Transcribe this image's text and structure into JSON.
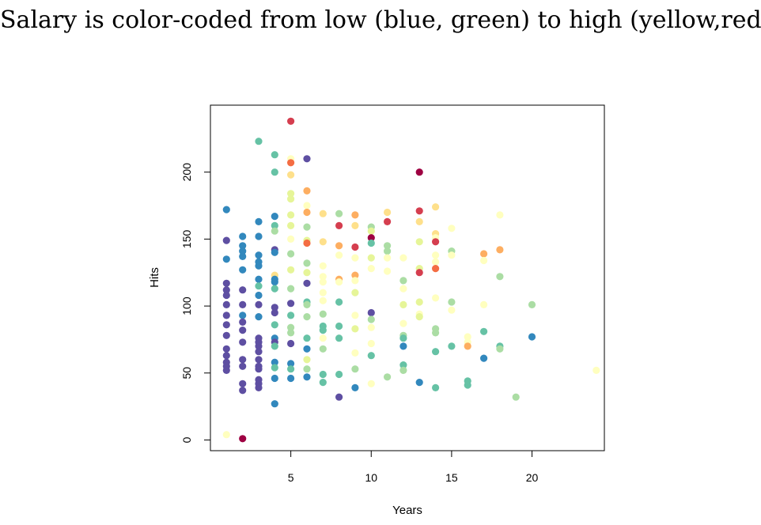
{
  "title": "Salary is color-coded from low (blue, green) to high (yellow,red)",
  "palette": {
    "r1": "#9e0142",
    "r2": "#d53e4f",
    "r3": "#f46d43",
    "r4": "#fdae61",
    "r5": "#fee08b",
    "r6": "#ffffbf",
    "r7": "#e6f598",
    "r8": "#abdda4",
    "r9": "#66c2a5",
    "r10": "#3288bd",
    "r11": "#5e4fa2"
  },
  "chart_data": {
    "type": "scatter",
    "xlabel": "Years",
    "ylabel": "Hits",
    "xlim": [
      0,
      24.5
    ],
    "ylim": [
      -8,
      250
    ],
    "xticks": [
      5,
      10,
      15,
      20
    ],
    "yticks": [
      0,
      50,
      100,
      150,
      200
    ],
    "grid": false,
    "points": [
      [
        1,
        172,
        "r10"
      ],
      [
        1,
        149,
        "r11"
      ],
      [
        1,
        135,
        "r10"
      ],
      [
        1,
        117,
        "r11"
      ],
      [
        1,
        112,
        "r11"
      ],
      [
        1,
        108,
        "r11"
      ],
      [
        1,
        101,
        "r11"
      ],
      [
        1,
        93,
        "r11"
      ],
      [
        1,
        86,
        "r11"
      ],
      [
        1,
        78,
        "r11"
      ],
      [
        1,
        68,
        "r11"
      ],
      [
        1,
        63,
        "r11"
      ],
      [
        1,
        58,
        "r11"
      ],
      [
        1,
        55,
        "r11"
      ],
      [
        1,
        52,
        "r11"
      ],
      [
        1,
        4,
        "r6"
      ],
      [
        2,
        152,
        "r10"
      ],
      [
        2,
        145,
        "r10"
      ],
      [
        2,
        141,
        "r10"
      ],
      [
        2,
        137,
        "r10"
      ],
      [
        2,
        127,
        "r10"
      ],
      [
        2,
        112,
        "r11"
      ],
      [
        2,
        101,
        "r11"
      ],
      [
        2,
        93,
        "r10"
      ],
      [
        2,
        88,
        "r11"
      ],
      [
        2,
        82,
        "r11"
      ],
      [
        2,
        73,
        "r11"
      ],
      [
        2,
        60,
        "r11"
      ],
      [
        2,
        55,
        "r11"
      ],
      [
        2,
        42,
        "r11"
      ],
      [
        2,
        37,
        "r11"
      ],
      [
        2,
        1,
        "r1"
      ],
      [
        3,
        223,
        "r9"
      ],
      [
        3,
        163,
        "r10"
      ],
      [
        3,
        152,
        "r10"
      ],
      [
        3,
        138,
        "r10"
      ],
      [
        3,
        133,
        "r10"
      ],
      [
        3,
        130,
        "r10"
      ],
      [
        3,
        120,
        "r10"
      ],
      [
        3,
        115,
        "r9"
      ],
      [
        3,
        108,
        "r10"
      ],
      [
        3,
        101,
        "r11"
      ],
      [
        3,
        92,
        "r10"
      ],
      [
        3,
        76,
        "r11"
      ],
      [
        3,
        73,
        "r11"
      ],
      [
        3,
        70,
        "r11"
      ],
      [
        3,
        66,
        "r11"
      ],
      [
        3,
        60,
        "r11"
      ],
      [
        3,
        55,
        "r11"
      ],
      [
        3,
        53,
        "r11"
      ],
      [
        3,
        45,
        "r11"
      ],
      [
        3,
        42,
        "r11"
      ],
      [
        3,
        39,
        "r11"
      ],
      [
        4,
        213,
        "r9"
      ],
      [
        4,
        200,
        "r9"
      ],
      [
        4,
        167,
        "r10"
      ],
      [
        4,
        160,
        "r9"
      ],
      [
        4,
        156,
        "r8"
      ],
      [
        4,
        142,
        "r11"
      ],
      [
        4,
        140,
        "r10"
      ],
      [
        4,
        123,
        "r5"
      ],
      [
        4,
        120,
        "r10"
      ],
      [
        4,
        118,
        "r10"
      ],
      [
        4,
        113,
        "r9"
      ],
      [
        4,
        99,
        "r11"
      ],
      [
        4,
        95,
        "r11"
      ],
      [
        4,
        86,
        "r9"
      ],
      [
        4,
        76,
        "r10"
      ],
      [
        4,
        73,
        "r11"
      ],
      [
        4,
        70,
        "r9"
      ],
      [
        4,
        58,
        "r10"
      ],
      [
        4,
        54,
        "r9"
      ],
      [
        4,
        46,
        "r10"
      ],
      [
        4,
        27,
        "r10"
      ],
      [
        5,
        238,
        "r2"
      ],
      [
        5,
        210,
        "r6"
      ],
      [
        5,
        207,
        "r3"
      ],
      [
        5,
        198,
        "r5"
      ],
      [
        5,
        184,
        "r7"
      ],
      [
        5,
        180,
        "r7"
      ],
      [
        5,
        168,
        "r7"
      ],
      [
        5,
        160,
        "r7"
      ],
      [
        5,
        150,
        "r6"
      ],
      [
        5,
        139,
        "r8"
      ],
      [
        5,
        127,
        "r7"
      ],
      [
        5,
        113,
        "r8"
      ],
      [
        5,
        102,
        "r11"
      ],
      [
        5,
        93,
        "r9"
      ],
      [
        5,
        84,
        "r8"
      ],
      [
        5,
        80,
        "r8"
      ],
      [
        5,
        72,
        "r11"
      ],
      [
        5,
        57,
        "r10"
      ],
      [
        5,
        53,
        "r9"
      ],
      [
        5,
        46,
        "r10"
      ],
      [
        6,
        210,
        "r11"
      ],
      [
        6,
        186,
        "r4"
      ],
      [
        6,
        175,
        "r6"
      ],
      [
        6,
        170,
        "r4"
      ],
      [
        6,
        159,
        "r8"
      ],
      [
        6,
        149,
        "r7"
      ],
      [
        6,
        147,
        "r3"
      ],
      [
        6,
        132,
        "r8"
      ],
      [
        6,
        125,
        "r7"
      ],
      [
        6,
        117,
        "r11"
      ],
      [
        6,
        103,
        "r9"
      ],
      [
        6,
        101,
        "r8"
      ],
      [
        6,
        92,
        "r8"
      ],
      [
        6,
        76,
        "r9"
      ],
      [
        6,
        68,
        "r10"
      ],
      [
        6,
        60,
        "r7"
      ],
      [
        6,
        53,
        "r8"
      ],
      [
        6,
        47,
        "r10"
      ],
      [
        7,
        169,
        "r5"
      ],
      [
        7,
        148,
        "r5"
      ],
      [
        7,
        130,
        "r6"
      ],
      [
        7,
        122,
        "r6"
      ],
      [
        7,
        118,
        "r6"
      ],
      [
        7,
        110,
        "r6"
      ],
      [
        7,
        104,
        "r6"
      ],
      [
        7,
        94,
        "r8"
      ],
      [
        7,
        85,
        "r9"
      ],
      [
        7,
        82,
        "r9"
      ],
      [
        7,
        76,
        "r6"
      ],
      [
        7,
        68,
        "r8"
      ],
      [
        7,
        49,
        "r9"
      ],
      [
        7,
        43,
        "r9"
      ],
      [
        8,
        169,
        "r8"
      ],
      [
        8,
        160,
        "r2"
      ],
      [
        8,
        145,
        "r4"
      ],
      [
        8,
        138,
        "r6"
      ],
      [
        8,
        120,
        "r4"
      ],
      [
        8,
        118,
        "r6"
      ],
      [
        8,
        103,
        "r9"
      ],
      [
        8,
        85,
        "r9"
      ],
      [
        8,
        76,
        "r9"
      ],
      [
        8,
        49,
        "r9"
      ],
      [
        8,
        32,
        "r11"
      ],
      [
        9,
        168,
        "r4"
      ],
      [
        9,
        160,
        "r5"
      ],
      [
        9,
        144,
        "r2"
      ],
      [
        9,
        136,
        "r6"
      ],
      [
        9,
        123,
        "r4"
      ],
      [
        9,
        119,
        "r6"
      ],
      [
        9,
        110,
        "r7"
      ],
      [
        9,
        93,
        "r6"
      ],
      [
        9,
        83,
        "r7"
      ],
      [
        9,
        65,
        "r6"
      ],
      [
        9,
        53,
        "r8"
      ],
      [
        9,
        39,
        "r10"
      ],
      [
        10,
        159,
        "r8"
      ],
      [
        10,
        156,
        "r7"
      ],
      [
        10,
        151,
        "r1"
      ],
      [
        10,
        147,
        "r9"
      ],
      [
        10,
        136,
        "r7"
      ],
      [
        10,
        128,
        "r6"
      ],
      [
        10,
        95,
        "r11"
      ],
      [
        10,
        90,
        "r8"
      ],
      [
        10,
        84,
        "r6"
      ],
      [
        10,
        72,
        "r6"
      ],
      [
        10,
        63,
        "r9"
      ],
      [
        10,
        42,
        "r6"
      ],
      [
        11,
        170,
        "r5"
      ],
      [
        11,
        163,
        "r2"
      ],
      [
        11,
        145,
        "r8"
      ],
      [
        11,
        141,
        "r8"
      ],
      [
        11,
        136,
        "r6"
      ],
      [
        11,
        126,
        "r6"
      ],
      [
        11,
        47,
        "r8"
      ],
      [
        12,
        136,
        "r6"
      ],
      [
        12,
        119,
        "r8"
      ],
      [
        12,
        113,
        "r6"
      ],
      [
        12,
        101,
        "r7"
      ],
      [
        12,
        87,
        "r6"
      ],
      [
        12,
        78,
        "r8"
      ],
      [
        12,
        76,
        "r9"
      ],
      [
        12,
        70,
        "r10"
      ],
      [
        12,
        56,
        "r9"
      ],
      [
        12,
        52,
        "r8"
      ],
      [
        13,
        200,
        "r1"
      ],
      [
        13,
        171,
        "r2"
      ],
      [
        13,
        163,
        "r5"
      ],
      [
        13,
        148,
        "r7"
      ],
      [
        13,
        128,
        "r7"
      ],
      [
        13,
        125,
        "r2"
      ],
      [
        13,
        103,
        "r7"
      ],
      [
        13,
        94,
        "r6"
      ],
      [
        13,
        92,
        "r7"
      ],
      [
        13,
        43,
        "r10"
      ],
      [
        14,
        174,
        "r5"
      ],
      [
        14,
        154,
        "r5"
      ],
      [
        14,
        151,
        "r6"
      ],
      [
        14,
        148,
        "r2"
      ],
      [
        14,
        138,
        "r6"
      ],
      [
        14,
        133,
        "r6"
      ],
      [
        14,
        128,
        "r3"
      ],
      [
        14,
        106,
        "r6"
      ],
      [
        14,
        83,
        "r8"
      ],
      [
        14,
        80,
        "r8"
      ],
      [
        14,
        66,
        "r9"
      ],
      [
        14,
        39,
        "r9"
      ],
      [
        15,
        158,
        "r6"
      ],
      [
        15,
        141,
        "r8"
      ],
      [
        15,
        138,
        "r6"
      ],
      [
        15,
        103,
        "r8"
      ],
      [
        15,
        97,
        "r6"
      ],
      [
        15,
        70,
        "r9"
      ],
      [
        16,
        77,
        "r6"
      ],
      [
        16,
        73,
        "r6"
      ],
      [
        16,
        70,
        "r4"
      ],
      [
        16,
        44,
        "r9"
      ],
      [
        16,
        41,
        "r9"
      ],
      [
        17,
        139,
        "r4"
      ],
      [
        17,
        134,
        "r6"
      ],
      [
        17,
        101,
        "r6"
      ],
      [
        17,
        81,
        "r9"
      ],
      [
        17,
        61,
        "r10"
      ],
      [
        18,
        168,
        "r6"
      ],
      [
        18,
        142,
        "r4"
      ],
      [
        18,
        122,
        "r8"
      ],
      [
        18,
        70,
        "r9"
      ],
      [
        18,
        68,
        "r8"
      ],
      [
        19,
        32,
        "r8"
      ],
      [
        20,
        101,
        "r8"
      ],
      [
        20,
        77,
        "r10"
      ],
      [
        24,
        52,
        "r6"
      ]
    ]
  }
}
